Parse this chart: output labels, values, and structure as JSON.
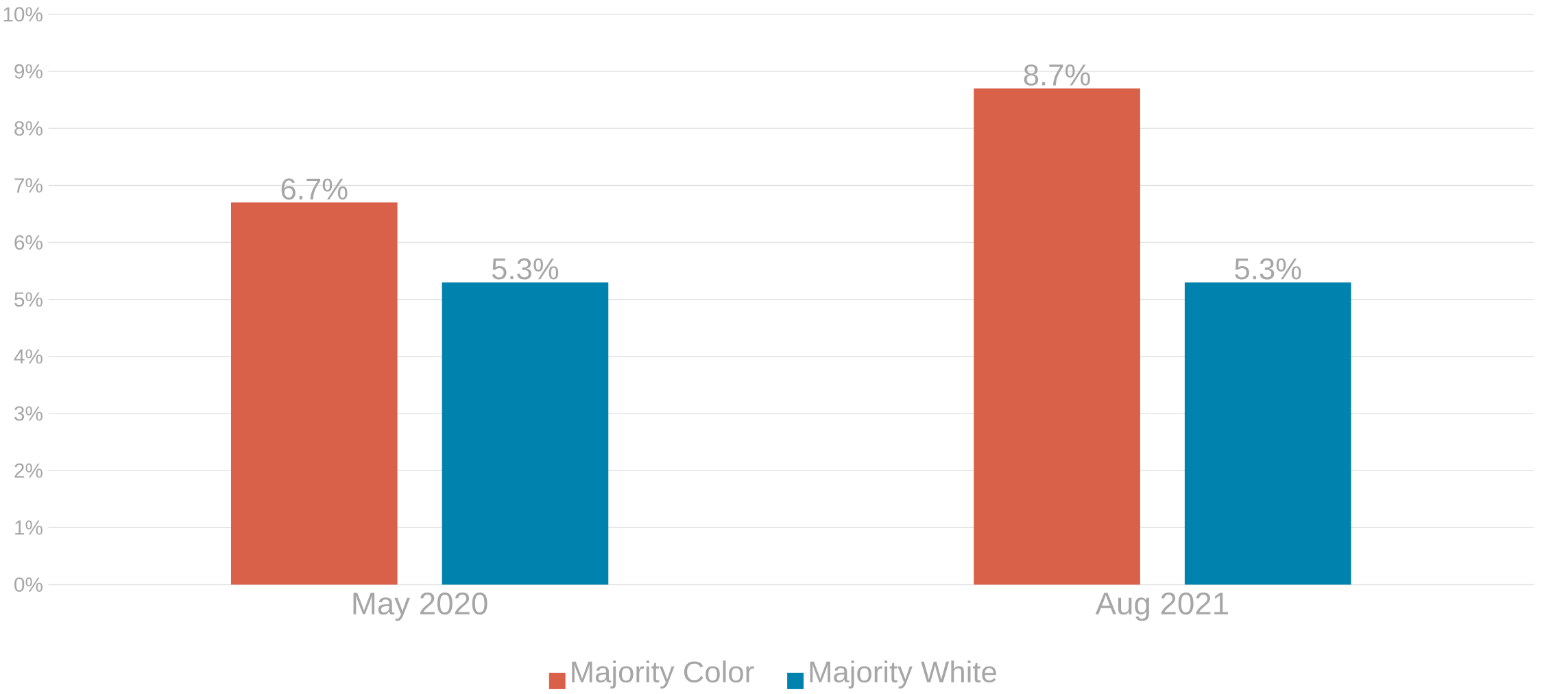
{
  "chart_data": {
    "type": "bar",
    "categories": [
      "May 2020",
      "Aug 2021"
    ],
    "series": [
      {
        "name": "Majority Color",
        "color": "#d9614a",
        "values": [
          6.7,
          8.7
        ],
        "value_labels": [
          "6.7%",
          "8.7%"
        ]
      },
      {
        "name": "Majority White",
        "color": "#0082ae",
        "values": [
          5.3,
          5.3
        ],
        "value_labels": [
          "5.3%",
          "5.3%"
        ]
      }
    ],
    "ylim": [
      0,
      10
    ],
    "yticks": [
      {
        "value": 0,
        "label": "0%"
      },
      {
        "value": 1,
        "label": "1%"
      },
      {
        "value": 2,
        "label": "2%"
      },
      {
        "value": 3,
        "label": "3%"
      },
      {
        "value": 4,
        "label": "4%"
      },
      {
        "value": 5,
        "label": "5%"
      },
      {
        "value": 6,
        "label": "6%"
      },
      {
        "value": 7,
        "label": "7%"
      },
      {
        "value": 8,
        "label": "8%"
      },
      {
        "value": 9,
        "label": "9%"
      },
      {
        "value": 10,
        "label": "10%"
      }
    ],
    "grid": "y",
    "legend": "bottom"
  }
}
